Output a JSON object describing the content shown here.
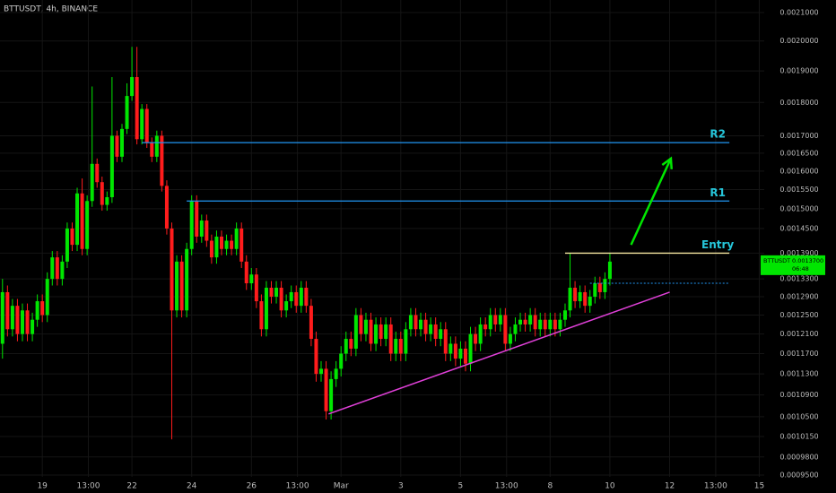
{
  "chart_data": {
    "type": "candlestick",
    "title": "BTTUSDT, 4h, BINANCE",
    "log_scale": true,
    "grid": true,
    "up_color": "#00e600",
    "down_color": "#ff1c1c",
    "ylim": [
      0.00095,
      0.0021
    ],
    "yticks": [
      {
        "value": 0.0021,
        "label": "0.0021000"
      },
      {
        "value": 0.002,
        "label": "0.0020000"
      },
      {
        "value": 0.0019,
        "label": "0.0019000"
      },
      {
        "value": 0.0018,
        "label": "0.0018000"
      },
      {
        "value": 0.0017,
        "label": "0.0017000"
      },
      {
        "value": 0.00165,
        "label": "0.0016500"
      },
      {
        "value": 0.0016,
        "label": "0.0016000"
      },
      {
        "value": 0.00155,
        "label": "0.0015500"
      },
      {
        "value": 0.0015,
        "label": "0.0015000"
      },
      {
        "value": 0.00145,
        "label": "0.0014500"
      },
      {
        "value": 0.00139,
        "label": "0.0013900"
      },
      {
        "value": 0.00133,
        "label": "0.0013300"
      },
      {
        "value": 0.00129,
        "label": "0.0012900"
      },
      {
        "value": 0.00125,
        "label": "0.0012500"
      },
      {
        "value": 0.00121,
        "label": "0.0012100"
      },
      {
        "value": 0.00117,
        "label": "0.0011700"
      },
      {
        "value": 0.00113,
        "label": "0.0011300"
      },
      {
        "value": 0.00109,
        "label": "0.0010900"
      },
      {
        "value": 0.00105,
        "label": "0.0010500"
      },
      {
        "value": 0.001015,
        "label": "0.0010150"
      },
      {
        "value": 0.00098,
        "label": "0.0009800"
      },
      {
        "value": 0.00095,
        "label": "0.0009500"
      }
    ],
    "xlim": [
      -34,
      580
    ],
    "xticks": [
      {
        "value": 0,
        "label": "19"
      },
      {
        "value": 37,
        "label": "13:00"
      },
      {
        "value": 72,
        "label": "22"
      },
      {
        "value": 120,
        "label": "24"
      },
      {
        "value": 168,
        "label": "26"
      },
      {
        "value": 205,
        "label": "13:00"
      },
      {
        "value": 240,
        "label": "Mar"
      },
      {
        "value": 288,
        "label": "3"
      },
      {
        "value": 336,
        "label": "5"
      },
      {
        "value": 373,
        "label": "13:00"
      },
      {
        "value": 408,
        "label": "8"
      },
      {
        "value": 456,
        "label": "10"
      },
      {
        "value": 504,
        "label": "12"
      },
      {
        "value": 541,
        "label": "13:00"
      },
      {
        "value": 576,
        "label": "15"
      }
    ],
    "ohlc": {
      "x": [
        -32,
        -28,
        -24,
        -20,
        -16,
        -12,
        -8,
        -4,
        0,
        4,
        8,
        12,
        16,
        20,
        24,
        28,
        32,
        36,
        40,
        44,
        48,
        52,
        56,
        60,
        64,
        68,
        72,
        76,
        80,
        84,
        88,
        92,
        96,
        100,
        104,
        108,
        112,
        116,
        120,
        124,
        128,
        132,
        136,
        140,
        144,
        148,
        152,
        156,
        160,
        164,
        168,
        172,
        176,
        180,
        184,
        188,
        192,
        196,
        200,
        204,
        208,
        212,
        216,
        220,
        224,
        228,
        232,
        236,
        240,
        244,
        248,
        252,
        256,
        260,
        264,
        268,
        272,
        276,
        280,
        284,
        288,
        292,
        296,
        300,
        304,
        308,
        312,
        316,
        320,
        324,
        328,
        332,
        336,
        340,
        344,
        348,
        352,
        356,
        360,
        364,
        368,
        372,
        376,
        380,
        384,
        388,
        392,
        396,
        400,
        404,
        408,
        412,
        416,
        420,
        424,
        428,
        432,
        436,
        440,
        444,
        448,
        452,
        456
      ],
      "open": [
        0.00119,
        0.0013,
        0.00122,
        0.00127,
        0.00121,
        0.00126,
        0.00121,
        0.00124,
        0.00128,
        0.00125,
        0.00133,
        0.00138,
        0.00133,
        0.00137,
        0.00145,
        0.00141,
        0.00154,
        0.0014,
        0.00152,
        0.00162,
        0.00157,
        0.00151,
        0.00153,
        0.0017,
        0.00164,
        0.00172,
        0.00182,
        0.00188,
        0.00169,
        0.00178,
        0.00168,
        0.00164,
        0.0017,
        0.00156,
        0.00145,
        0.00126,
        0.00137,
        0.00126,
        0.0014,
        0.00152,
        0.00143,
        0.00147,
        0.00142,
        0.00138,
        0.00143,
        0.0014,
        0.00142,
        0.0014,
        0.00145,
        0.00137,
        0.00132,
        0.00134,
        0.00128,
        0.00122,
        0.00131,
        0.00129,
        0.00131,
        0.00126,
        0.00128,
        0.0013,
        0.00127,
        0.00131,
        0.00127,
        0.0012,
        0.00113,
        0.00114,
        0.00106,
        0.00112,
        0.00114,
        0.00117,
        0.0012,
        0.00118,
        0.00125,
        0.00121,
        0.00124,
        0.00119,
        0.00123,
        0.0012,
        0.00123,
        0.00117,
        0.0012,
        0.00117,
        0.00122,
        0.00125,
        0.00122,
        0.00124,
        0.00121,
        0.00123,
        0.0012,
        0.00122,
        0.00117,
        0.00119,
        0.00116,
        0.00118,
        0.00115,
        0.00121,
        0.00119,
        0.00123,
        0.00122,
        0.00125,
        0.00123,
        0.00125,
        0.00119,
        0.00121,
        0.00123,
        0.00124,
        0.00123,
        0.00125,
        0.00122,
        0.00124,
        0.00122,
        0.00124,
        0.00122,
        0.00124,
        0.00126,
        0.00131,
        0.00128,
        0.0013,
        0.00127,
        0.00129,
        0.00132,
        0.0013,
        0.00133
      ],
      "high": [
        0.00133,
        0.001315,
        0.001285,
        0.001285,
        0.001275,
        0.001275,
        0.001255,
        0.001295,
        0.001295,
        0.001345,
        0.001395,
        0.001395,
        0.001385,
        0.001465,
        0.001465,
        0.001555,
        0.00158,
        0.001535,
        0.00185,
        0.001635,
        0.001585,
        0.001545,
        0.00188,
        0.001715,
        0.001735,
        0.00186,
        0.00198,
        0.00198,
        0.001795,
        0.001795,
        0.001695,
        0.001715,
        0.001715,
        0.001575,
        0.001465,
        0.001385,
        0.001385,
        0.001415,
        0.001535,
        0.001535,
        0.001485,
        0.001485,
        0.001435,
        0.001445,
        0.001445,
        0.001435,
        0.001435,
        0.001465,
        0.001465,
        0.001385,
        0.001355,
        0.001355,
        0.001295,
        0.001325,
        0.001325,
        0.001325,
        0.001325,
        0.001295,
        0.001315,
        0.001315,
        0.001325,
        0.001325,
        0.001285,
        0.001215,
        0.001155,
        0.001155,
        0.001135,
        0.001155,
        0.001185,
        0.001215,
        0.001215,
        0.001265,
        0.001265,
        0.001255,
        0.001255,
        0.001245,
        0.001245,
        0.001245,
        0.001245,
        0.001215,
        0.001215,
        0.001235,
        0.001265,
        0.001265,
        0.001255,
        0.001255,
        0.001245,
        0.001245,
        0.001235,
        0.001235,
        0.001205,
        0.001205,
        0.001195,
        0.001195,
        0.001225,
        0.001225,
        0.001245,
        0.001245,
        0.001265,
        0.001265,
        0.001265,
        0.001265,
        0.001225,
        0.001245,
        0.001255,
        0.001255,
        0.001265,
        0.001265,
        0.001255,
        0.001255,
        0.001255,
        0.001255,
        0.001255,
        0.001275,
        0.00139,
        0.001325,
        0.001315,
        0.001315,
        0.001305,
        0.001335,
        0.001335,
        0.001345,
        0.00139
      ],
      "low": [
        0.00116,
        0.001205,
        0.001205,
        0.001195,
        0.001195,
        0.001195,
        0.001195,
        0.001225,
        0.001235,
        0.001235,
        0.001315,
        0.001315,
        0.001315,
        0.001355,
        0.001395,
        0.001395,
        0.001385,
        0.001385,
        0.001505,
        0.001555,
        0.001495,
        0.001495,
        0.001515,
        0.001625,
        0.001625,
        0.001705,
        0.001805,
        0.001675,
        0.001675,
        0.001665,
        0.001625,
        0.001625,
        0.001545,
        0.001435,
        0.00101,
        0.001245,
        0.001245,
        0.001245,
        0.001385,
        0.001415,
        0.001415,
        0.001405,
        0.001365,
        0.001365,
        0.001385,
        0.001385,
        0.001385,
        0.001385,
        0.001355,
        0.001305,
        0.001305,
        0.001265,
        0.001205,
        0.001205,
        0.001275,
        0.001275,
        0.001245,
        0.001245,
        0.001265,
        0.001255,
        0.001255,
        0.001255,
        0.001185,
        0.001115,
        0.001115,
        0.001045,
        0.001045,
        0.001105,
        0.001125,
        0.001155,
        0.001165,
        0.001165,
        0.001195,
        0.001195,
        0.001175,
        0.001175,
        0.001185,
        0.001185,
        0.001155,
        0.001155,
        0.001155,
        0.001155,
        0.001205,
        0.001205,
        0.001205,
        0.001195,
        0.001195,
        0.001185,
        0.001185,
        0.001155,
        0.001155,
        0.001145,
        0.001145,
        0.001135,
        0.001135,
        0.001175,
        0.001175,
        0.001205,
        0.001205,
        0.001215,
        0.001215,
        0.001175,
        0.001175,
        0.001195,
        0.001215,
        0.001215,
        0.001215,
        0.001205,
        0.001205,
        0.001205,
        0.001205,
        0.001205,
        0.001205,
        0.001225,
        0.001245,
        0.001265,
        0.001265,
        0.001255,
        0.001255,
        0.001275,
        0.001285,
        0.001285,
        0.001315
      ],
      "close": [
        0.0013,
        0.00122,
        0.00127,
        0.00121,
        0.00126,
        0.00121,
        0.00124,
        0.00128,
        0.00125,
        0.00133,
        0.00138,
        0.00133,
        0.00137,
        0.00145,
        0.00141,
        0.00154,
        0.0014,
        0.00152,
        0.00162,
        0.00157,
        0.00151,
        0.00153,
        0.0017,
        0.00164,
        0.00172,
        0.00182,
        0.00188,
        0.00169,
        0.00178,
        0.00168,
        0.00164,
        0.0017,
        0.00156,
        0.00145,
        0.00126,
        0.00137,
        0.00126,
        0.0014,
        0.00152,
        0.00143,
        0.00147,
        0.00142,
        0.00138,
        0.00143,
        0.0014,
        0.00142,
        0.0014,
        0.00145,
        0.00137,
        0.00132,
        0.00134,
        0.00128,
        0.00122,
        0.00131,
        0.00129,
        0.00131,
        0.00126,
        0.00128,
        0.0013,
        0.00127,
        0.00131,
        0.00127,
        0.0012,
        0.00113,
        0.00114,
        0.00106,
        0.00112,
        0.00114,
        0.00117,
        0.0012,
        0.00118,
        0.00125,
        0.00121,
        0.00124,
        0.00119,
        0.00123,
        0.0012,
        0.00123,
        0.00117,
        0.0012,
        0.00117,
        0.00122,
        0.00125,
        0.00122,
        0.00124,
        0.00121,
        0.00123,
        0.0012,
        0.00122,
        0.00117,
        0.00119,
        0.00116,
        0.00118,
        0.00115,
        0.00121,
        0.00119,
        0.00123,
        0.00122,
        0.00125,
        0.00123,
        0.00125,
        0.00119,
        0.00121,
        0.00123,
        0.00124,
        0.00123,
        0.00125,
        0.00122,
        0.00124,
        0.00122,
        0.00124,
        0.00122,
        0.00124,
        0.00126,
        0.00131,
        0.00128,
        0.0013,
        0.00127,
        0.00129,
        0.00132,
        0.0013,
        0.00133,
        0.00137
      ]
    },
    "levels": [
      {
        "label": "R2",
        "value": 0.00168,
        "x": [
          80,
          552
        ],
        "color": "#2196f3"
      },
      {
        "label": "R1",
        "value": 0.00152,
        "x": [
          116,
          552
        ],
        "color": "#2196f3"
      },
      {
        "label": "Entry",
        "value": 0.00139,
        "x": [
          420,
          552
        ],
        "color": "#f5e6a0"
      }
    ],
    "label_color": "#26c6da",
    "dotted_level": {
      "value": 0.00132,
      "x": [
        440,
        552
      ],
      "color": "#2196f3"
    },
    "trendline": {
      "x": [
        230,
        504
      ],
      "y": [
        0.001055,
        0.0013
      ],
      "color": "#e040d8"
    },
    "arrow": {
      "x": [
        473,
        505
      ],
      "y": [
        0.00141,
        0.001635
      ],
      "color": "#00e600"
    },
    "symbol": "BTTUSDT",
    "last_price": {
      "value": 0.00137,
      "label": "0.0013700"
    },
    "countdown": "06:48"
  }
}
